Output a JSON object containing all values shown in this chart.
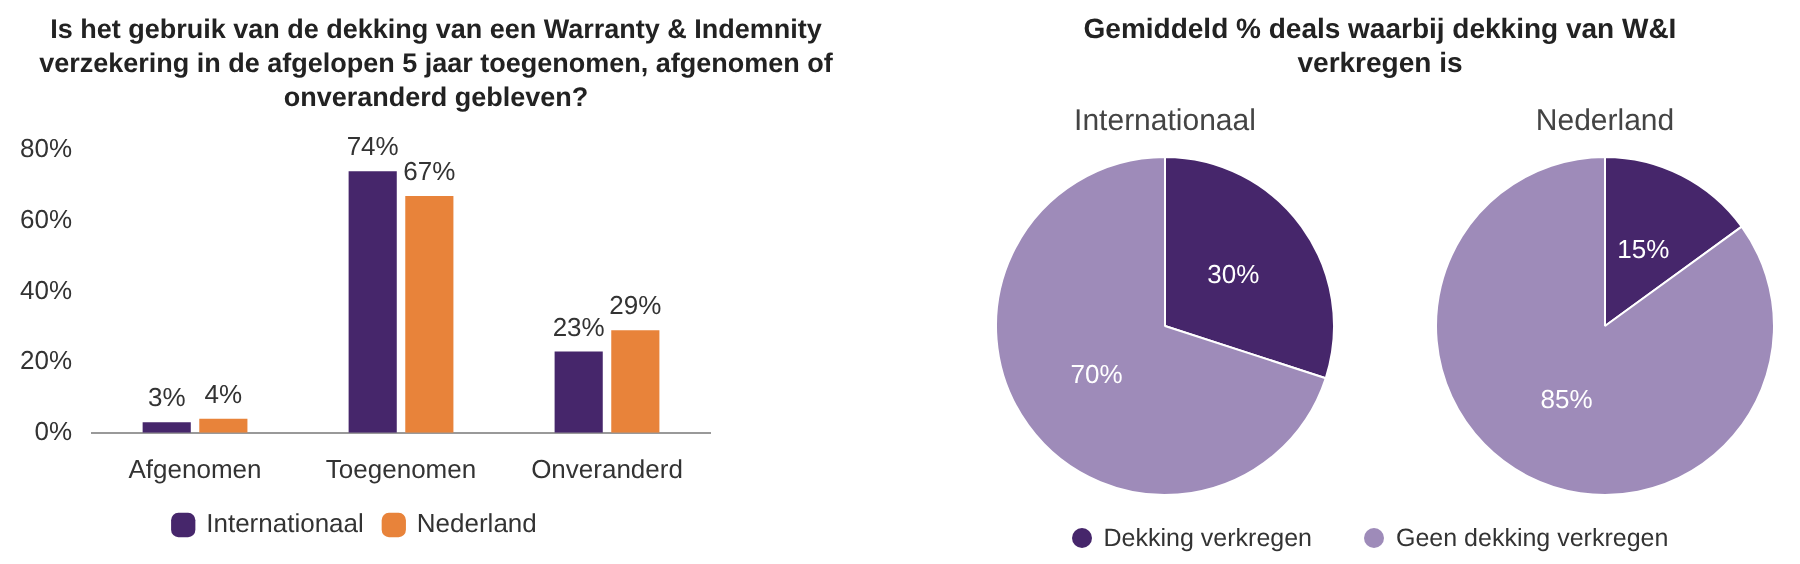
{
  "chart_data": [
    {
      "type": "bar",
      "title": "Is het gebruik van de dekking van een Warranty & Indemnity verzekering in de afgelopen 5 jaar toegenomen, afgenomen of onveranderd gebleven?",
      "categories": [
        "Afgenomen",
        "Toegenomen",
        "Onveranderd"
      ],
      "series": [
        {
          "name": "Internationaal",
          "color": "#46266b",
          "values": [
            3,
            74,
            23
          ],
          "value_labels": [
            "3%",
            "74%",
            "23%"
          ]
        },
        {
          "name": "Nederland",
          "color": "#e8833a",
          "values": [
            4,
            67,
            29
          ],
          "value_labels": [
            "4%",
            "67%",
            "29%"
          ]
        }
      ],
      "ylim": [
        0,
        80
      ],
      "yticks": [
        {
          "value": 0,
          "label": "0%"
        },
        {
          "value": 20,
          "label": "20%"
        },
        {
          "value": 40,
          "label": "40%"
        },
        {
          "value": 60,
          "label": "60%"
        },
        {
          "value": 80,
          "label": "80%"
        }
      ],
      "grid": false,
      "legend": "bottom"
    },
    {
      "type": "pie",
      "title": "Gemiddeld % deals waarbij dekking van W&I verkregen is",
      "subtitle": "Internationaal",
      "categories": [
        "Dekking verkregen",
        "Geen dekking verkregen"
      ],
      "values": [
        30,
        70
      ],
      "colors": [
        "#46266b",
        "#9e8bb9"
      ],
      "value_labels": [
        "30%",
        "70%"
      ],
      "legend": "bottom"
    },
    {
      "type": "pie",
      "subtitle": "Nederland",
      "values": [
        15,
        85
      ],
      "colors": [
        "#46266b",
        "#9e8bb9"
      ],
      "value_labels": [
        "15%",
        "85%"
      ]
    }
  ]
}
